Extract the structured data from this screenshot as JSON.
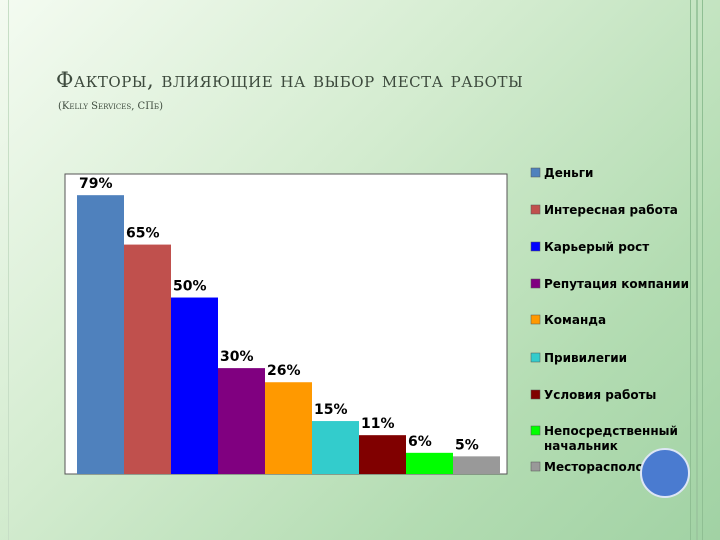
{
  "slide": {
    "title": "Факторы, влияющие на выбор места работы",
    "subtitle": "(Kelly Services, СПб)"
  },
  "chart_data": {
    "type": "bar",
    "title": "",
    "xlabel": "",
    "ylabel": "",
    "ylim": [
      0,
      85
    ],
    "grid": false,
    "legend_position": "right",
    "series": [
      {
        "name": "Деньги",
        "value": 79,
        "label": "79%",
        "color": "#4f81bd"
      },
      {
        "name": "Интересная работа",
        "value": 65,
        "label": "65%",
        "color": "#c0504d"
      },
      {
        "name": "Карьерый рост",
        "value": 50,
        "label": "50%",
        "color": "#0000ff"
      },
      {
        "name": "Репутация компании",
        "value": 30,
        "label": "30%",
        "color": "#800080"
      },
      {
        "name": "Команда",
        "value": 26,
        "label": "26%",
        "color": "#ff9900"
      },
      {
        "name": "Привилегии",
        "value": 15,
        "label": "15%",
        "color": "#33cccc"
      },
      {
        "name": "Условия работы",
        "value": 11,
        "label": "11%",
        "color": "#800000"
      },
      {
        "name": "Непосредственный начальник",
        "value": 6,
        "label": "6%",
        "color": "#00ff00"
      },
      {
        "name": "Месторасположение",
        "value": 5,
        "label": "5%",
        "color": "#999999"
      }
    ]
  }
}
